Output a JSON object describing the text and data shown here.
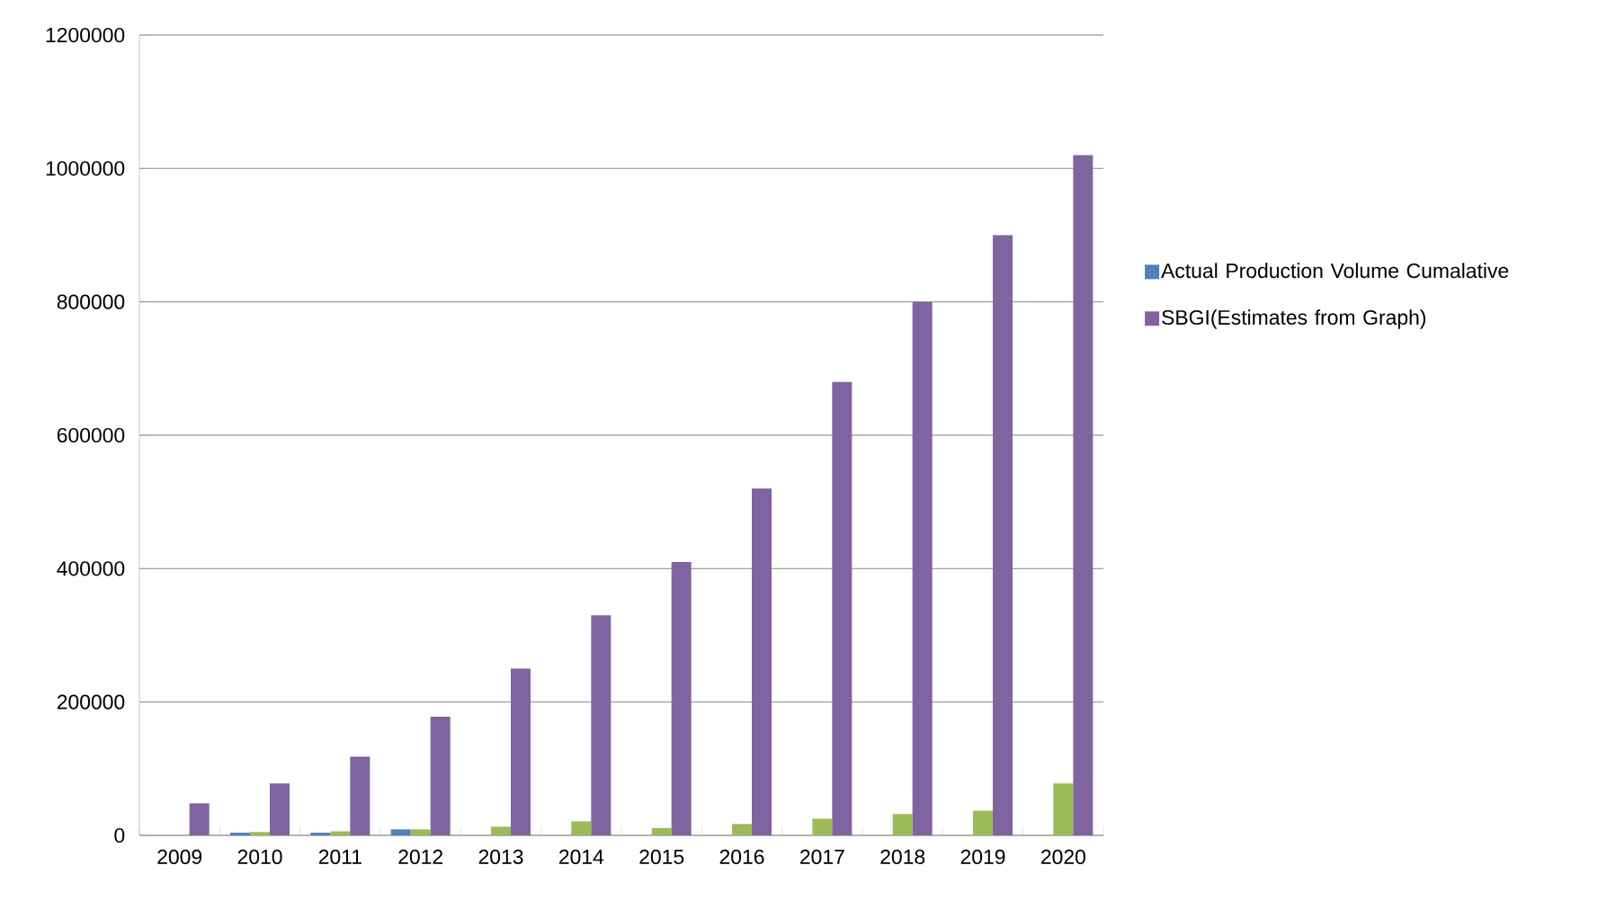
{
  "chart_data": {
    "type": "bar",
    "categories": [
      "2009",
      "2010",
      "2011",
      "2012",
      "2013",
      "2014",
      "2015",
      "2016",
      "2017",
      "2018",
      "2019",
      "2020"
    ],
    "series": [
      {
        "name": "Actual Production Volume Cumalative",
        "color": "#4f81bd",
        "values": [
          null,
          4000,
          4000,
          9000,
          null,
          null,
          null,
          null,
          null,
          null,
          null,
          null
        ]
      },
      {
        "color": "#9bbb59",
        "values": [
          null,
          5000,
          6000,
          9000,
          13000,
          21000,
          11000,
          17000,
          25000,
          32000,
          37000,
          78000
        ]
      },
      {
        "name": "SBGI(Estimates from Graph)",
        "color": "#8064a2",
        "values": [
          48000,
          78000,
          118000,
          178000,
          250000,
          330000,
          410000,
          520000,
          680000,
          800000,
          900000,
          1020000
        ]
      }
    ],
    "ylim": [
      0,
      1200000
    ],
    "yticks": [
      0,
      200000,
      400000,
      600000,
      800000,
      1000000,
      1200000
    ],
    "grid": "y",
    "legend": "right"
  }
}
